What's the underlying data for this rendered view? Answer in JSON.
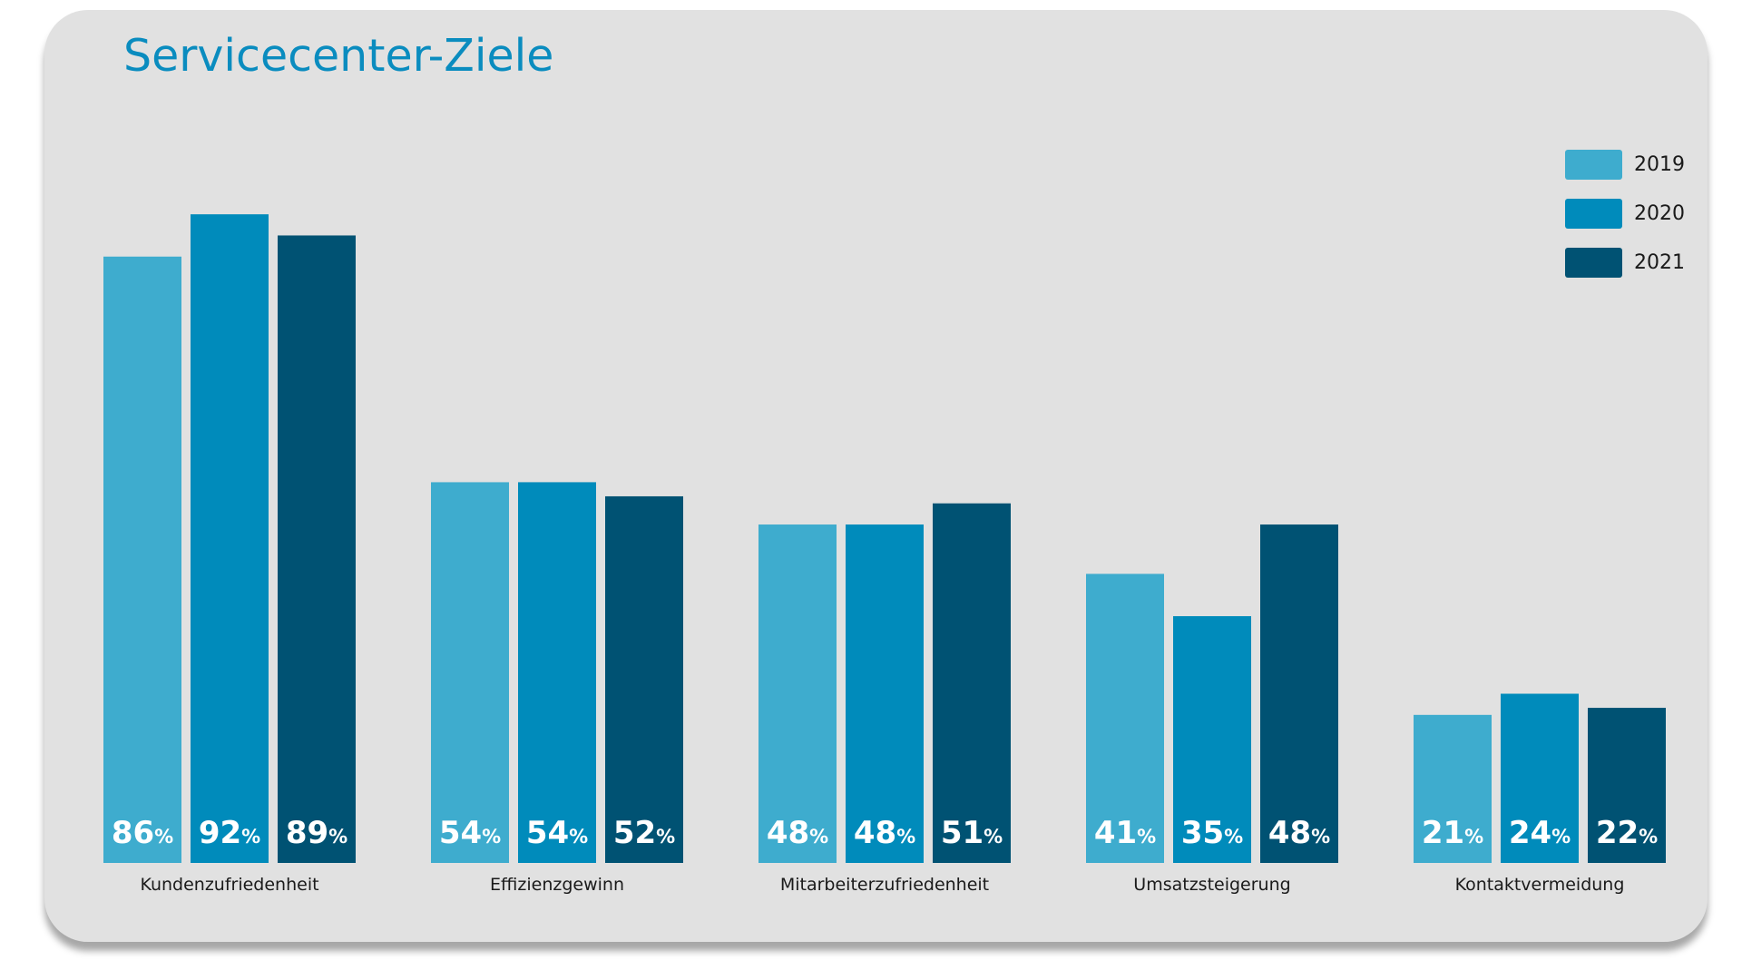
{
  "colors": {
    "card_background": "#e1e1e1",
    "title": "#0a8cbf",
    "series_2019": "#3eacce",
    "series_2020": "#008bbb",
    "series_2021": "#005273",
    "value_label": "#ffffff",
    "category_label": "#1a1a1a"
  },
  "chart_data": {
    "type": "bar",
    "title": "Servicecenter-Ziele",
    "categories": [
      "Kundenzufriedenheit",
      "Effizienzgewinn",
      "Mitarbeiterzufriedenheit",
      "Umsatzsteigerung",
      "Kontaktvermeidung"
    ],
    "series": [
      {
        "name": "2019",
        "color": "#3eacce",
        "values": [
          86,
          54,
          48,
          41,
          21
        ]
      },
      {
        "name": "2020",
        "color": "#008bbb",
        "values": [
          92,
          54,
          48,
          35,
          24
        ]
      },
      {
        "name": "2021",
        "color": "#005273",
        "values": [
          89,
          52,
          51,
          48,
          22
        ]
      }
    ],
    "value_unit": "%",
    "xlabel": "",
    "ylabel": "",
    "ylim": [
      0,
      100
    ],
    "grid": false,
    "legend_position": "top-right"
  }
}
